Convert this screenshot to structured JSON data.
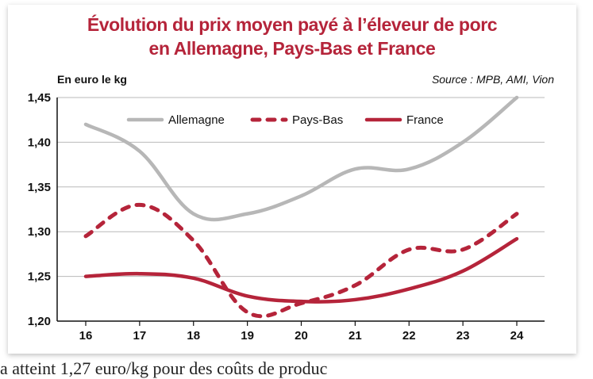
{
  "chart_data": {
    "type": "line",
    "title": "Évolution du prix moyen payé à l’éleveur de porc en Allemagne, Pays-Bas et France",
    "title_lines": [
      "Évolution du prix moyen payé à l’éleveur de porc",
      "en Allemagne, Pays-Bas et France"
    ],
    "ylabel": "En euro le kg",
    "source": "Source : MPB, AMI, Vion",
    "x": [
      "16",
      "17",
      "18",
      "19",
      "20",
      "21",
      "22",
      "23",
      "24"
    ],
    "ylim": [
      1.2,
      1.45
    ],
    "yticks": [
      "1,20",
      "1,25",
      "1,30",
      "1,35",
      "1,40",
      "1,45"
    ],
    "grid": true,
    "legend_position": "top",
    "series": [
      {
        "name": "Allemagne",
        "values": [
          1.42,
          1.39,
          1.32,
          1.32,
          1.34,
          1.37,
          1.37,
          1.4,
          1.45
        ],
        "color": "#b7b7b7",
        "style": "solid"
      },
      {
        "name": "Pays-Bas",
        "values": [
          1.295,
          1.33,
          1.29,
          1.21,
          1.22,
          1.24,
          1.28,
          1.28,
          1.32
        ],
        "color": "#b5243a",
        "style": "dotted"
      },
      {
        "name": "France",
        "values": [
          1.25,
          1.253,
          1.248,
          1.228,
          1.222,
          1.224,
          1.236,
          1.256,
          1.292
        ],
        "color": "#b5243a",
        "style": "solid"
      }
    ]
  },
  "footer_text": "a atteint 1,27 euro/kg pour des coûts de produc"
}
